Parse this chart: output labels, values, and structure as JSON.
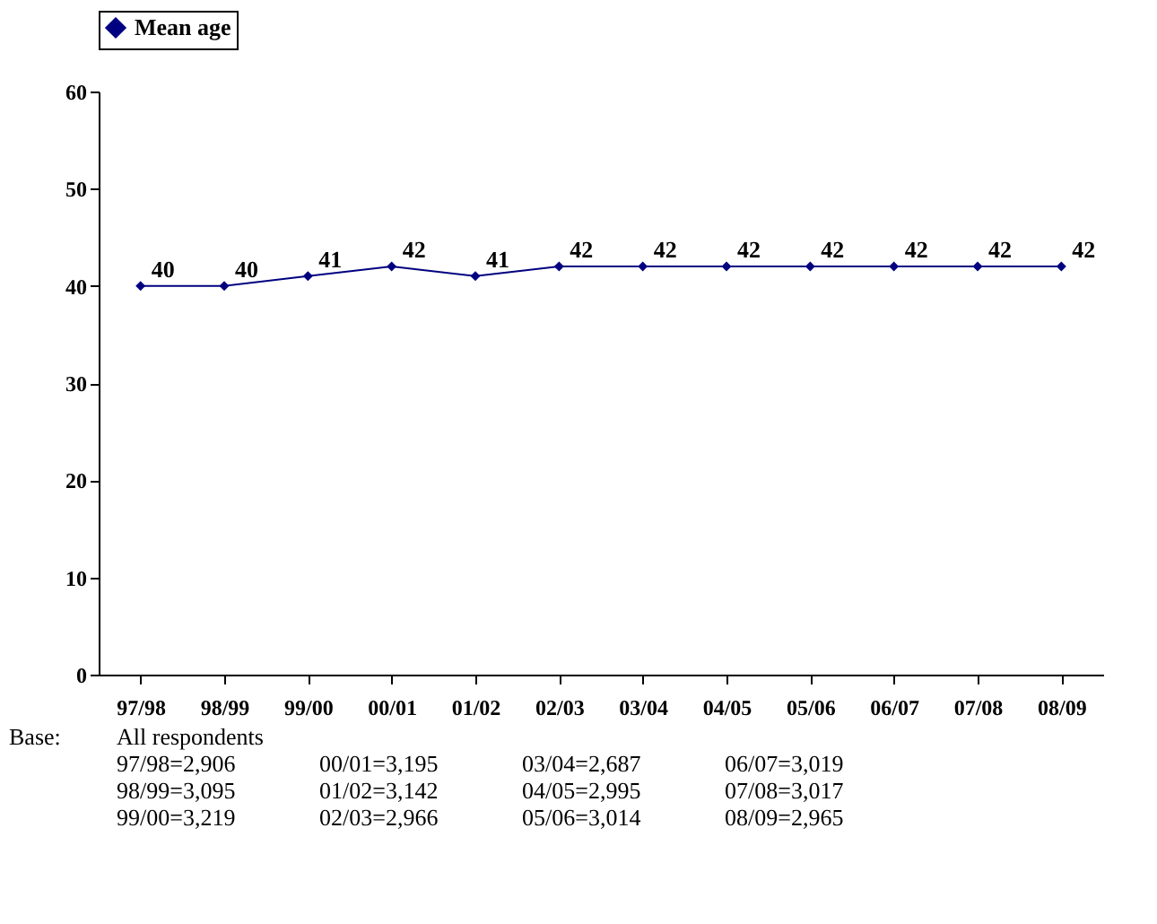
{
  "chart_data": {
    "type": "line",
    "categories": [
      "97/98",
      "98/99",
      "99/00",
      "00/01",
      "01/02",
      "02/03",
      "03/04",
      "04/05",
      "05/06",
      "06/07",
      "07/08",
      "08/09"
    ],
    "series": [
      {
        "name": "Mean age",
        "color": "#000080",
        "values": [
          40,
          40,
          41,
          42,
          41,
          42,
          42,
          42,
          42,
          42,
          42,
          42
        ]
      }
    ],
    "ylim": [
      0,
      60
    ],
    "yticks": [
      0,
      10,
      20,
      30,
      40,
      50,
      60
    ],
    "grid": false,
    "legend": "top",
    "marker": "diamond",
    "line_style": "solid",
    "data_labels": true,
    "annotations": [
      "Base:",
      "All respondents",
      "97/98=2,906",
      "98/99=3,095",
      "99/00=3,219",
      "00/01=3,195",
      "01/02=3,142",
      "02/03=2,966",
      "03/04=2,687",
      "04/05=2,995",
      "05/06=3,014",
      "06/07=3,019",
      "07/08=3,017",
      "08/09=2,965"
    ]
  }
}
